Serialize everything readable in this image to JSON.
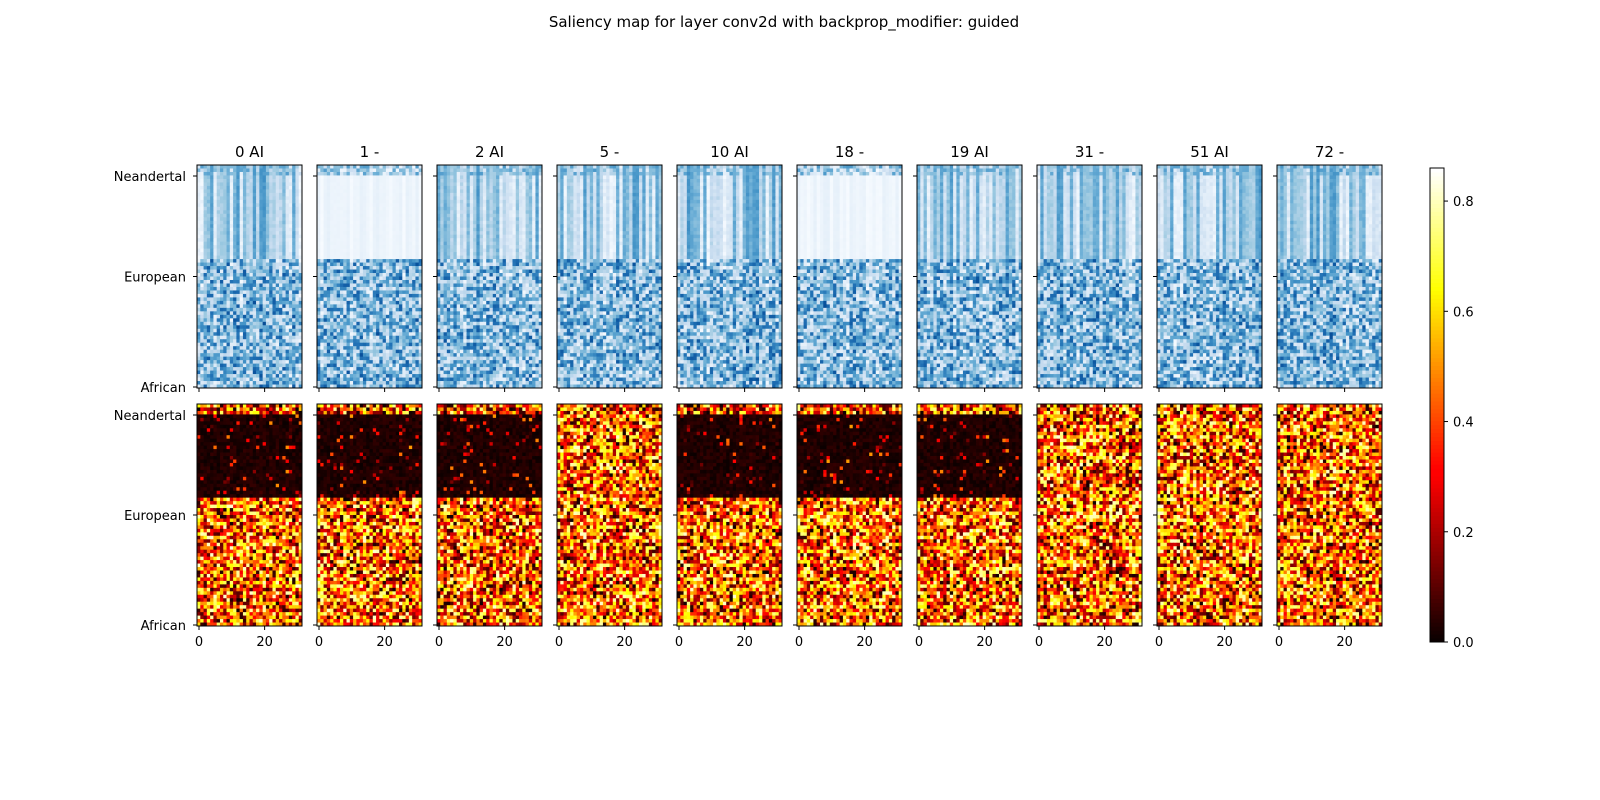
{
  "chart_data": {
    "type": "heatmap",
    "title": "Saliency map for layer conv2d with backprop_modifier: guided",
    "panels": [
      {
        "title": "0 AI"
      },
      {
        "title": "1 -"
      },
      {
        "title": "2 AI"
      },
      {
        "title": "5 -"
      },
      {
        "title": "10 AI"
      },
      {
        "title": "18 -"
      },
      {
        "title": "19 AI"
      },
      {
        "title": "31 -"
      },
      {
        "title": "51 AI"
      },
      {
        "title": "72 -"
      }
    ],
    "rows": [
      {
        "name": "input",
        "colormap": "Blues"
      },
      {
        "name": "saliency",
        "colormap": "hot"
      }
    ],
    "grid_shape": {
      "columns": 32,
      "rows": 64
    },
    "y_tick_labels": [
      "Neandertal",
      "European",
      "African"
    ],
    "x_tick_labels": [
      "0",
      "20"
    ],
    "x_tick_values": [
      0,
      20
    ],
    "xlim": [
      0,
      32
    ],
    "colorbar": {
      "colormap": "hot",
      "range": [
        0.0,
        0.86
      ],
      "ticks": [
        "0.0",
        "0.2",
        "0.4",
        "0.6",
        "0.8"
      ],
      "tick_values": [
        0.0,
        0.2,
        0.4,
        0.6,
        0.8
      ]
    }
  }
}
